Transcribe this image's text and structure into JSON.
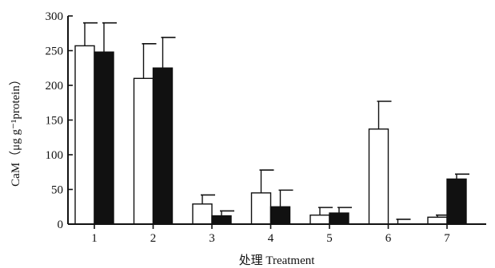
{
  "chart_data": {
    "type": "bar",
    "xlabel": "处理  Treatment",
    "ylabel": "CaM（μg g⁻¹protein）",
    "ylim": [
      0,
      300
    ],
    "yticks": [
      0,
      50,
      100,
      150,
      200,
      250,
      300
    ],
    "categories": [
      "1",
      "2",
      "3",
      "4",
      "5",
      "6",
      "7"
    ],
    "grid": false,
    "error_bars": "upper",
    "series": [
      {
        "fill": "#ffffff",
        "values": [
          257,
          210,
          29,
          45,
          13,
          137,
          10
        ],
        "errors": [
          33,
          50,
          13,
          33,
          11,
          40,
          3
        ]
      },
      {
        "fill": "#111111",
        "values": [
          248,
          225,
          12,
          25,
          16,
          0,
          65
        ],
        "errors": [
          42,
          44,
          7,
          24,
          8,
          7,
          7
        ]
      }
    ]
  }
}
